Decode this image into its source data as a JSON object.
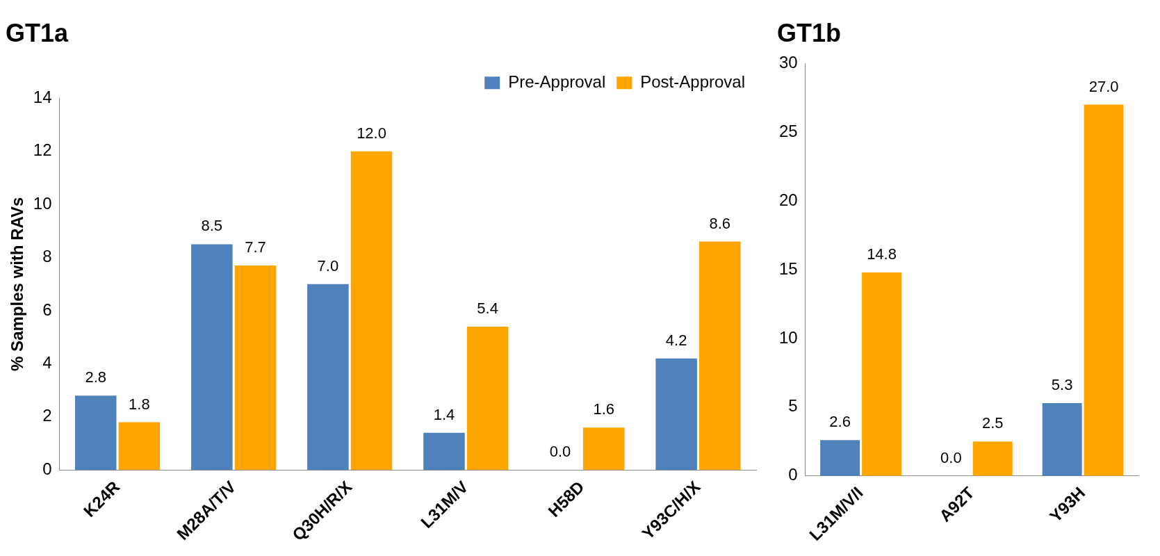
{
  "chart_data": [
    {
      "type": "bar",
      "title": "GT1a",
      "ylabel": "% Samples with RAVs",
      "categories": [
        "K24R",
        "M28A/T/V",
        "Q30H/R/X",
        "L31M/V",
        "H58D",
        "Y93C/H/X"
      ],
      "series": [
        {
          "name": "Pre-Approval",
          "color": "#4f81bd",
          "values": [
            2.8,
            8.5,
            7.0,
            1.4,
            0.0,
            4.2
          ],
          "value_labels": [
            "2.8",
            "8.5",
            "7.0",
            "1.4",
            "0.0",
            "4.2"
          ]
        },
        {
          "name": "Post-Approval",
          "color": "#ffa500",
          "values": [
            1.8,
            7.7,
            12.0,
            5.4,
            1.6,
            8.6
          ],
          "value_labels": [
            "1.8",
            "7.7",
            "12.0",
            "5.4",
            "1.6",
            "8.6"
          ]
        }
      ],
      "ylim": [
        0,
        14
      ],
      "yticks": [
        0,
        2,
        4,
        6,
        8,
        10,
        12,
        14
      ],
      "grid": false,
      "legend": "top right"
    },
    {
      "type": "bar",
      "title": "GT1b",
      "categories": [
        "L31M/V/I",
        "A92T",
        "Y93H"
      ],
      "series": [
        {
          "color": "#4f81bd",
          "values": [
            2.6,
            0.0,
            5.3
          ],
          "value_labels": [
            "2.6",
            "0.0",
            "5.3"
          ]
        },
        {
          "color": "#ffa500",
          "values": [
            14.8,
            2.5,
            27.0
          ],
          "value_labels": [
            "14.8",
            "2.5",
            "27.0"
          ]
        }
      ],
      "ylim": [
        0,
        30
      ],
      "yticks": [
        0,
        5,
        10,
        15,
        20,
        25,
        30
      ],
      "grid": false,
      "legend": false
    }
  ]
}
